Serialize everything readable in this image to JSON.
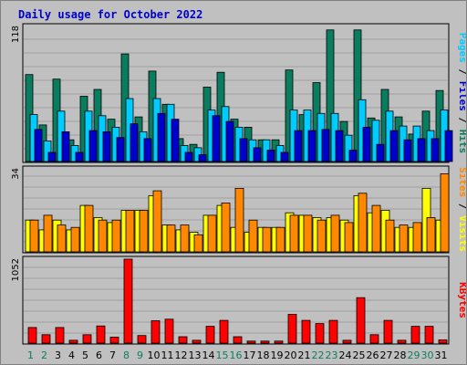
{
  "title": "Daily usage for October 2022",
  "chart_data": [
    {
      "type": "bar",
      "panel": "top",
      "ymax_label": "118",
      "grid": true,
      "categories": [
        "1",
        "2",
        "3",
        "4",
        "5",
        "6",
        "7",
        "8",
        "9",
        "10",
        "11",
        "12",
        "13",
        "14",
        "15",
        "16",
        "17",
        "18",
        "19",
        "20",
        "21",
        "22",
        "23",
        "24",
        "25",
        "26",
        "27",
        "28",
        "29",
        "30",
        "31"
      ],
      "weekend_days": [
        1,
        2,
        8,
        9,
        15,
        16,
        22,
        23,
        29,
        30
      ],
      "legend": [
        "Pages",
        "Files",
        "Hits"
      ],
      "series": [
        {
          "name": "Hits",
          "color": "#0a7d5f",
          "values": [
            76,
            32,
            72,
            19,
            57,
            63,
            37,
            94,
            39,
            79,
            50,
            20,
            15,
            65,
            78,
            37,
            30,
            19,
            19,
            80,
            41,
            69,
            115,
            35,
            115,
            38,
            63,
            39,
            24,
            44,
            62
          ]
        },
        {
          "name": "Files",
          "color": "#00ccff",
          "values": [
            41,
            18,
            44,
            14,
            44,
            40,
            30,
            55,
            26,
            55,
            50,
            14,
            12,
            45,
            48,
            30,
            19,
            19,
            14,
            45,
            45,
            42,
            42,
            23,
            54,
            36,
            44,
            31,
            31,
            27,
            45
          ]
        },
        {
          "name": "Pages",
          "color": "#0000cc",
          "values": [
            28,
            8,
            26,
            8,
            27,
            26,
            21,
            33,
            20,
            42,
            37,
            8,
            6,
            40,
            35,
            20,
            12,
            10,
            8,
            27,
            27,
            28,
            27,
            10,
            30,
            15,
            27,
            19,
            20,
            20,
            27
          ]
        }
      ]
    },
    {
      "type": "bar",
      "panel": "middle",
      "ymax_label": "34",
      "grid": true,
      "categories": [
        "1",
        "2",
        "3",
        "4",
        "5",
        "6",
        "7",
        "8",
        "9",
        "10",
        "11",
        "12",
        "13",
        "14",
        "15",
        "16",
        "17",
        "18",
        "19",
        "20",
        "21",
        "22",
        "23",
        "24",
        "25",
        "26",
        "27",
        "28",
        "29",
        "30",
        "31"
      ],
      "legend": [
        "Sites",
        "Visits"
      ],
      "series": [
        {
          "name": "Visits",
          "color": "#ffff00",
          "values": [
            13,
            9,
            13,
            9,
            19,
            14,
            12,
            17,
            17,
            23,
            11,
            9,
            8,
            15,
            19,
            10,
            8,
            10,
            10,
            16,
            15,
            14,
            14,
            13,
            23,
            16,
            17,
            10,
            10,
            26,
            13
          ]
        },
        {
          "name": "Sites",
          "color": "#ff8800",
          "values": [
            13,
            15,
            11,
            10,
            19,
            13,
            13,
            17,
            17,
            25,
            11,
            11,
            7,
            15,
            20,
            26,
            13,
            10,
            10,
            15,
            15,
            13,
            15,
            12,
            24,
            19,
            13,
            11,
            12,
            14,
            32
          ]
        }
      ]
    },
    {
      "type": "bar",
      "panel": "bottom",
      "ymax_label": "1052",
      "grid": true,
      "categories": [
        "1",
        "2",
        "3",
        "4",
        "5",
        "6",
        "7",
        "8",
        "9",
        "10",
        "11",
        "12",
        "13",
        "14",
        "15",
        "16",
        "17",
        "18",
        "19",
        "20",
        "21",
        "22",
        "23",
        "24",
        "25",
        "26",
        "27",
        "28",
        "29",
        "30",
        "31"
      ],
      "legend": [
        "KBytes"
      ],
      "series": [
        {
          "name": "KBytes",
          "color": "#ff0000",
          "values": [
            195,
            105,
            195,
            35,
            105,
            215,
            75,
            1052,
            95,
            280,
            300,
            80,
            35,
            210,
            285,
            80,
            25,
            25,
            25,
            360,
            285,
            245,
            285,
            35,
            570,
            105,
            285,
            35,
            210,
            210,
            40
          ]
        }
      ]
    }
  ]
}
